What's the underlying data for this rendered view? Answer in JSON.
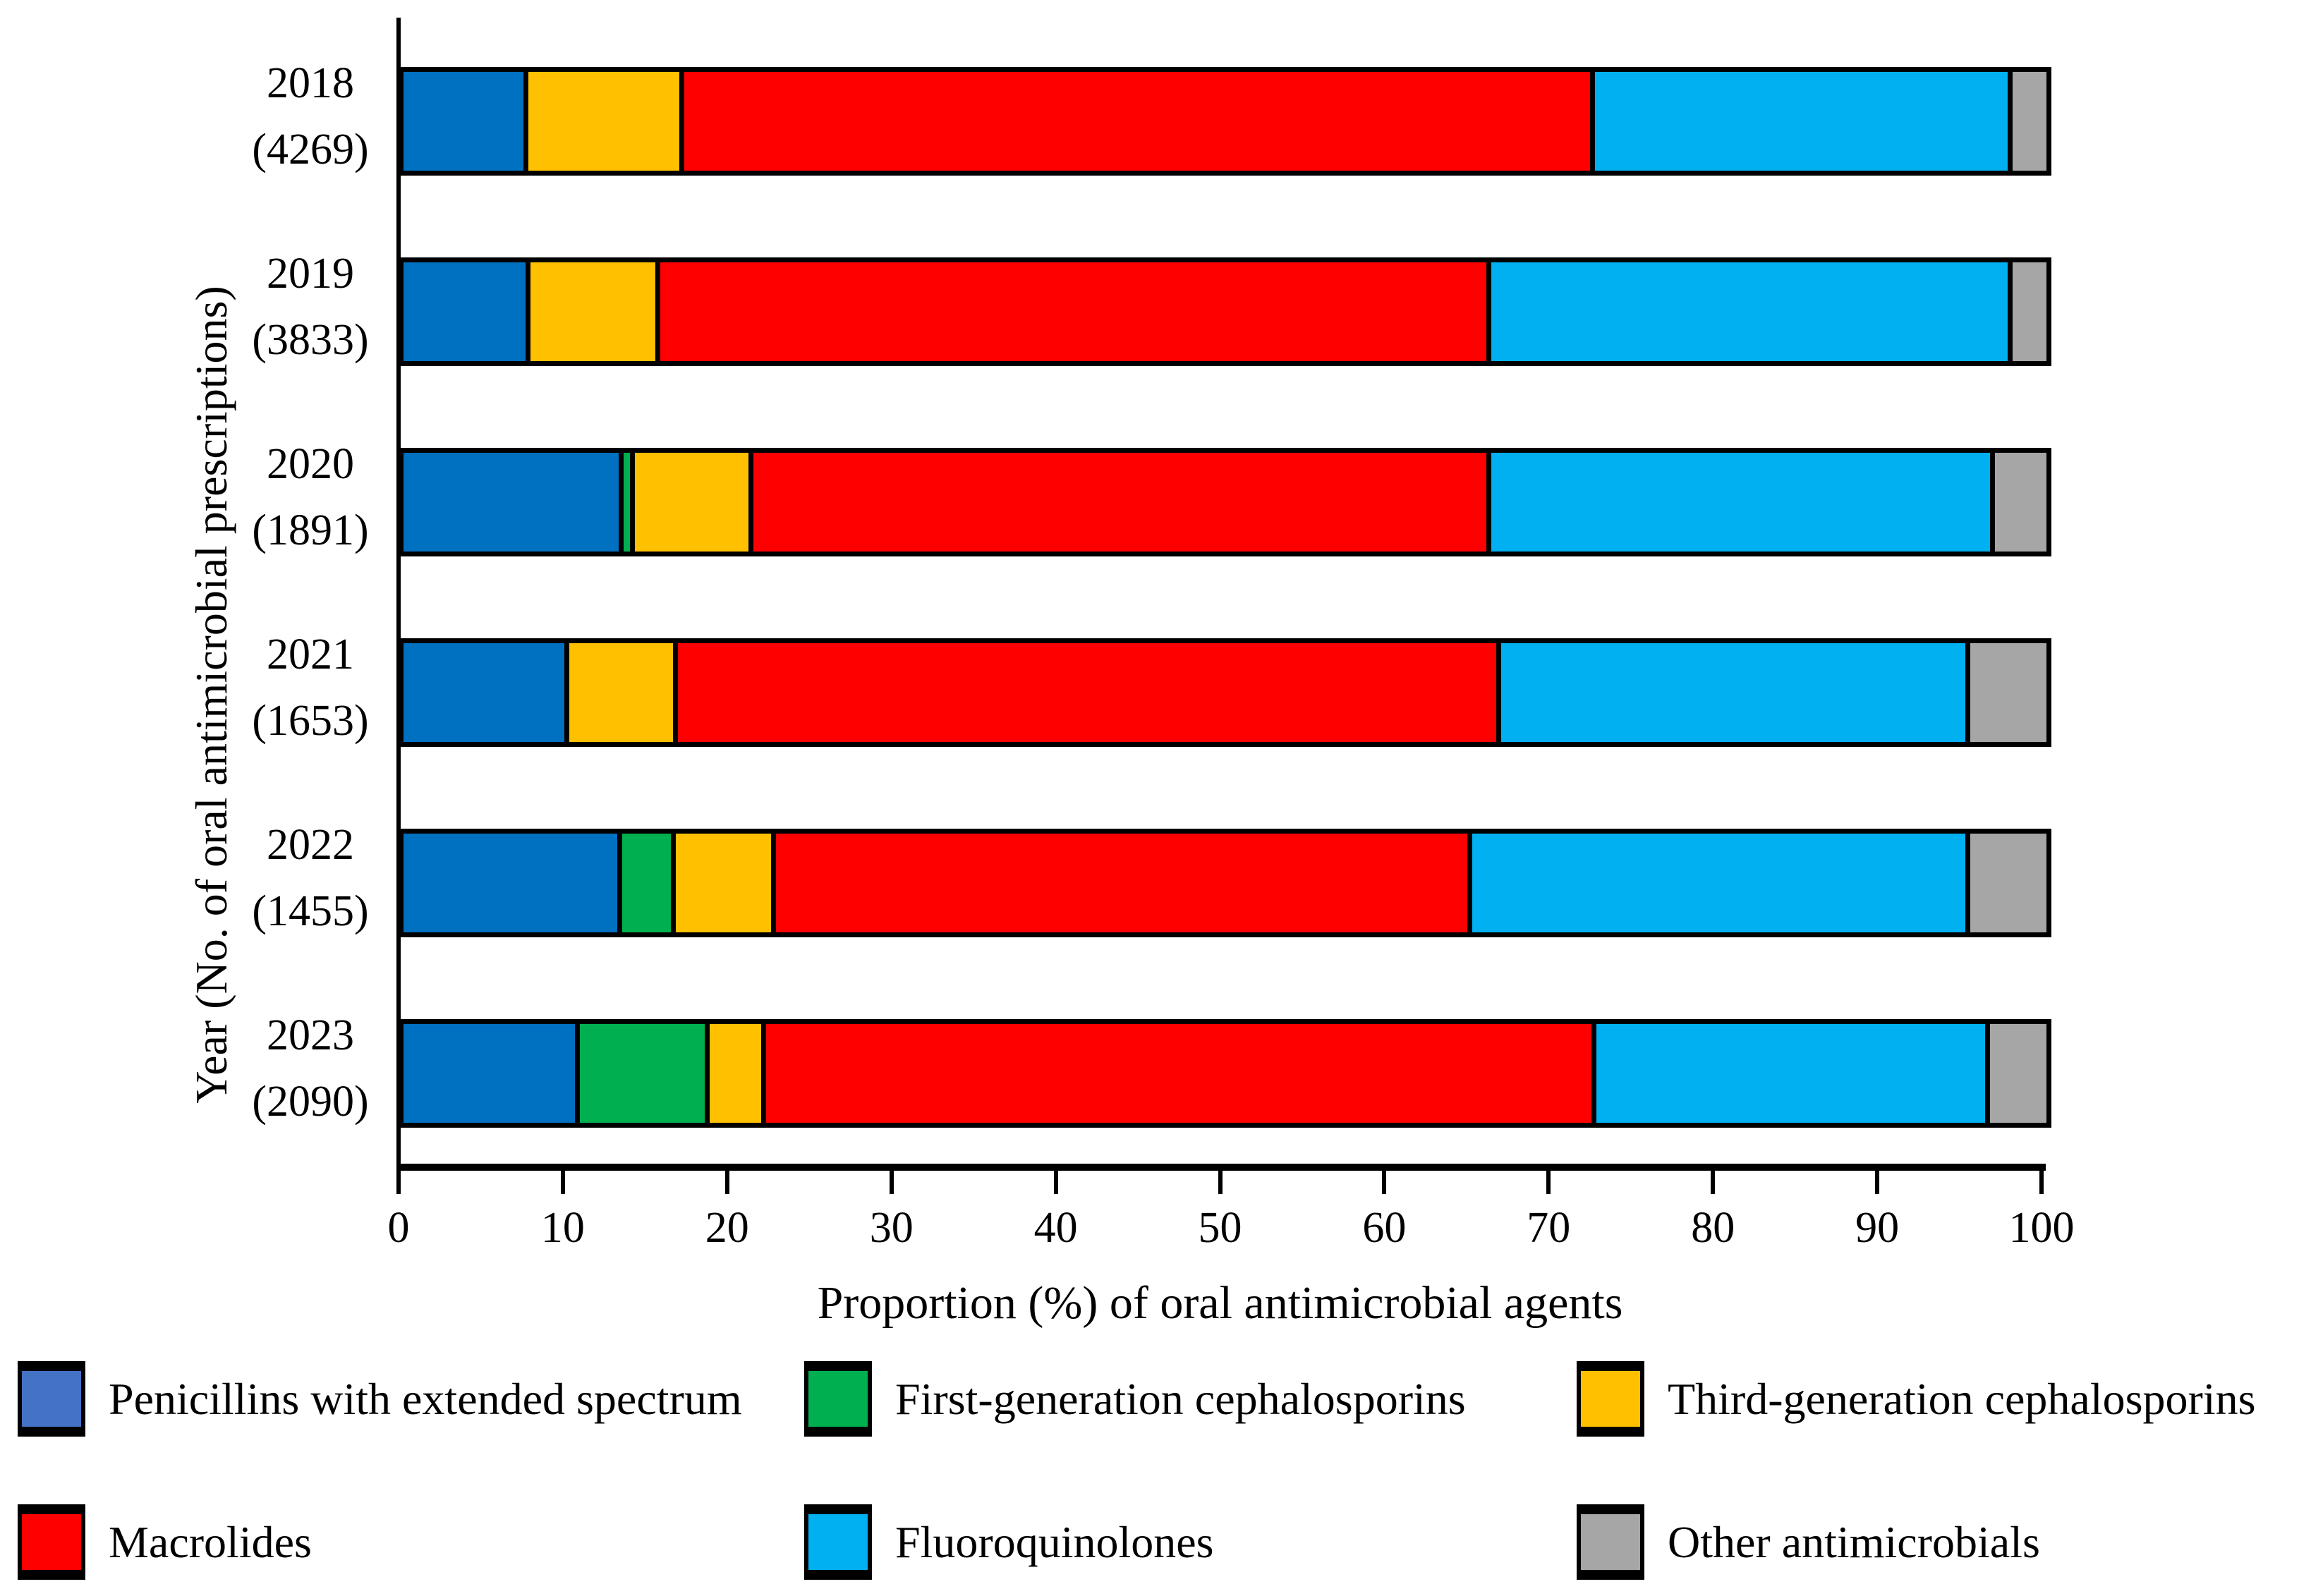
{
  "figure": {
    "y_axis_title": "Year (No. of oral antimicrobial prescriptions)",
    "x_axis_title": "Proportion (%) of oral antimicrobial agents"
  },
  "chart_data": {
    "type": "bar",
    "orientation": "horizontal",
    "stacked": true,
    "grid": false,
    "legend_position": "bottom",
    "xlim": [
      0,
      100
    ],
    "x_ticks": [
      0,
      10,
      20,
      30,
      40,
      50,
      60,
      70,
      80,
      90,
      100
    ],
    "categories": [
      "2018",
      "2019",
      "2020",
      "2021",
      "2022",
      "2023"
    ],
    "category_counts": [
      4269,
      3833,
      1891,
      1653,
      1455,
      2090
    ],
    "series": [
      {
        "name": "Penicillins with extended spectrum",
        "color": "#0070C0",
        "legend_color": "#4472C4",
        "values": [
          7.4,
          7.5,
          13.3,
          9.9,
          13.2,
          10.6
        ]
      },
      {
        "name": "First-generation cephalosporins",
        "color": "#00B050",
        "legend_color": "#00B050",
        "values": [
          0,
          0,
          0.4,
          0,
          3.0,
          7.7
        ]
      },
      {
        "name": "Third-generation cephalosporins",
        "color": "#FFC000",
        "legend_color": "#FFC000",
        "values": [
          9.3,
          7.7,
          7.0,
          6.4,
          5.9,
          3.2
        ]
      },
      {
        "name": "Macrolides",
        "color": "#FF0000",
        "legend_color": "#FF0000",
        "values": [
          55.8,
          50.9,
          45.3,
          50.4,
          42.7,
          51.0
        ]
      },
      {
        "name": "Fluoroquinolones",
        "color": "#00B0F0",
        "legend_color": "#00B0F0",
        "values": [
          25.4,
          31.8,
          30.8,
          28.6,
          30.5,
          24.0
        ]
      },
      {
        "name": "Other antimicrobials",
        "color": "#A6A6A6",
        "legend_color": "#A6A6A6",
        "values": [
          2.1,
          2.1,
          3.2,
          4.7,
          4.7,
          3.5
        ]
      }
    ]
  }
}
